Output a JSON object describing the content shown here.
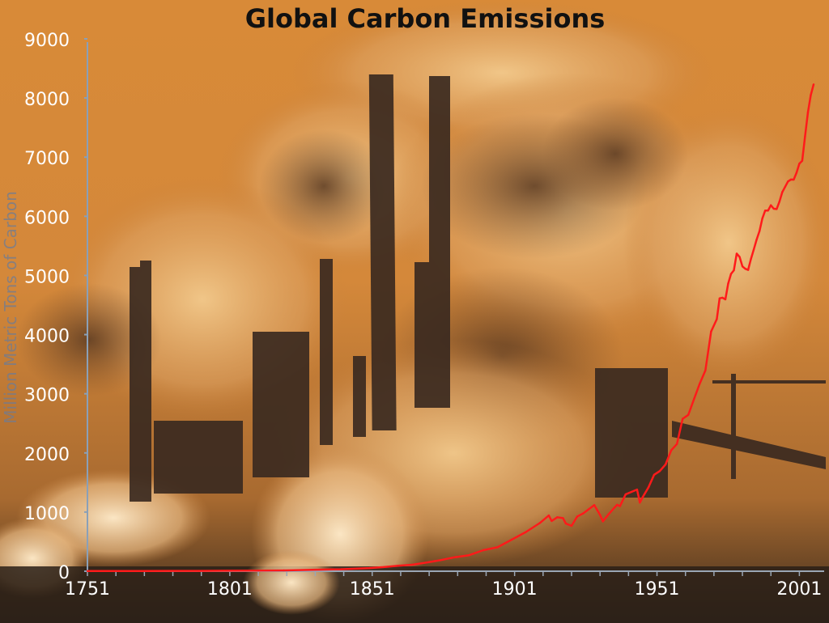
{
  "chart_data": {
    "type": "line",
    "title": "Global Carbon Emissions",
    "ylabel": "Million Metric Tons of Carbon",
    "xlabel": "",
    "xlim": [
      1751,
      2006
    ],
    "ylim": [
      0,
      9000
    ],
    "x_ticks": [
      "1751",
      "1801",
      "1851",
      "1901",
      "1951",
      "2001"
    ],
    "y_ticks": [
      "0",
      "1000",
      "2000",
      "3000",
      "4000",
      "5000",
      "6000",
      "7000",
      "8000",
      "9000"
    ],
    "grid": false,
    "series": [
      {
        "name": "",
        "color": "#ff1a1a",
        "points": [
          [
            1751,
            3
          ],
          [
            1760,
            3
          ],
          [
            1770,
            4
          ],
          [
            1780,
            5
          ],
          [
            1790,
            6
          ],
          [
            1800,
            8
          ],
          [
            1810,
            10
          ],
          [
            1820,
            14
          ],
          [
            1830,
            24
          ],
          [
            1840,
            33
          ],
          [
            1850,
            54
          ],
          [
            1855,
            70
          ],
          [
            1860,
            91
          ],
          [
            1865,
            110
          ],
          [
            1870,
            147
          ],
          [
            1875,
            188
          ],
          [
            1880,
            236
          ],
          [
            1885,
            271
          ],
          [
            1890,
            356
          ],
          [
            1895,
            405
          ],
          [
            1900,
            534
          ],
          [
            1905,
            663
          ],
          [
            1910,
            819
          ],
          [
            1913,
            943
          ],
          [
            1914,
            850
          ],
          [
            1916,
            912
          ],
          [
            1918,
            897
          ],
          [
            1919,
            806
          ],
          [
            1921,
            767
          ],
          [
            1923,
            925
          ],
          [
            1925,
            975
          ],
          [
            1927,
            1047
          ],
          [
            1929,
            1118
          ],
          [
            1930,
            1033
          ],
          [
            1931,
            950
          ],
          [
            1932,
            843
          ],
          [
            1934,
            961
          ],
          [
            1936,
            1072
          ],
          [
            1937,
            1123
          ],
          [
            1938,
            1100
          ],
          [
            1940,
            1299
          ],
          [
            1942,
            1340
          ],
          [
            1944,
            1380
          ],
          [
            1945,
            1160
          ],
          [
            1946,
            1253
          ],
          [
            1948,
            1417
          ],
          [
            1950,
            1630
          ],
          [
            1952,
            1693
          ],
          [
            1954,
            1804
          ],
          [
            1956,
            2043
          ],
          [
            1958,
            2151
          ],
          [
            1960,
            2577
          ],
          [
            1962,
            2643
          ],
          [
            1964,
            2910
          ],
          [
            1966,
            3170
          ],
          [
            1968,
            3393
          ],
          [
            1970,
            4053
          ],
          [
            1972,
            4260
          ],
          [
            1973,
            4614
          ],
          [
            1974,
            4623
          ],
          [
            1975,
            4596
          ],
          [
            1976,
            4864
          ],
          [
            1977,
            5026
          ],
          [
            1978,
            5087
          ],
          [
            1979,
            5369
          ],
          [
            1980,
            5315
          ],
          [
            1981,
            5152
          ],
          [
            1982,
            5113
          ],
          [
            1983,
            5094
          ],
          [
            1984,
            5280
          ],
          [
            1985,
            5439
          ],
          [
            1986,
            5607
          ],
          [
            1987,
            5752
          ],
          [
            1988,
            5965
          ],
          [
            1989,
            6097
          ],
          [
            1990,
            6096
          ],
          [
            1991,
            6186
          ],
          [
            1992,
            6127
          ],
          [
            1993,
            6122
          ],
          [
            1994,
            6248
          ],
          [
            1995,
            6408
          ],
          [
            1996,
            6499
          ],
          [
            1997,
            6589
          ],
          [
            1998,
            6622
          ],
          [
            1999,
            6620
          ],
          [
            2000,
            6736
          ],
          [
            2001,
            6891
          ],
          [
            2002,
            6939
          ],
          [
            2003,
            7350
          ],
          [
            2004,
            7760
          ],
          [
            2005,
            8049
          ],
          [
            2006,
            8230
          ]
        ]
      }
    ]
  }
}
